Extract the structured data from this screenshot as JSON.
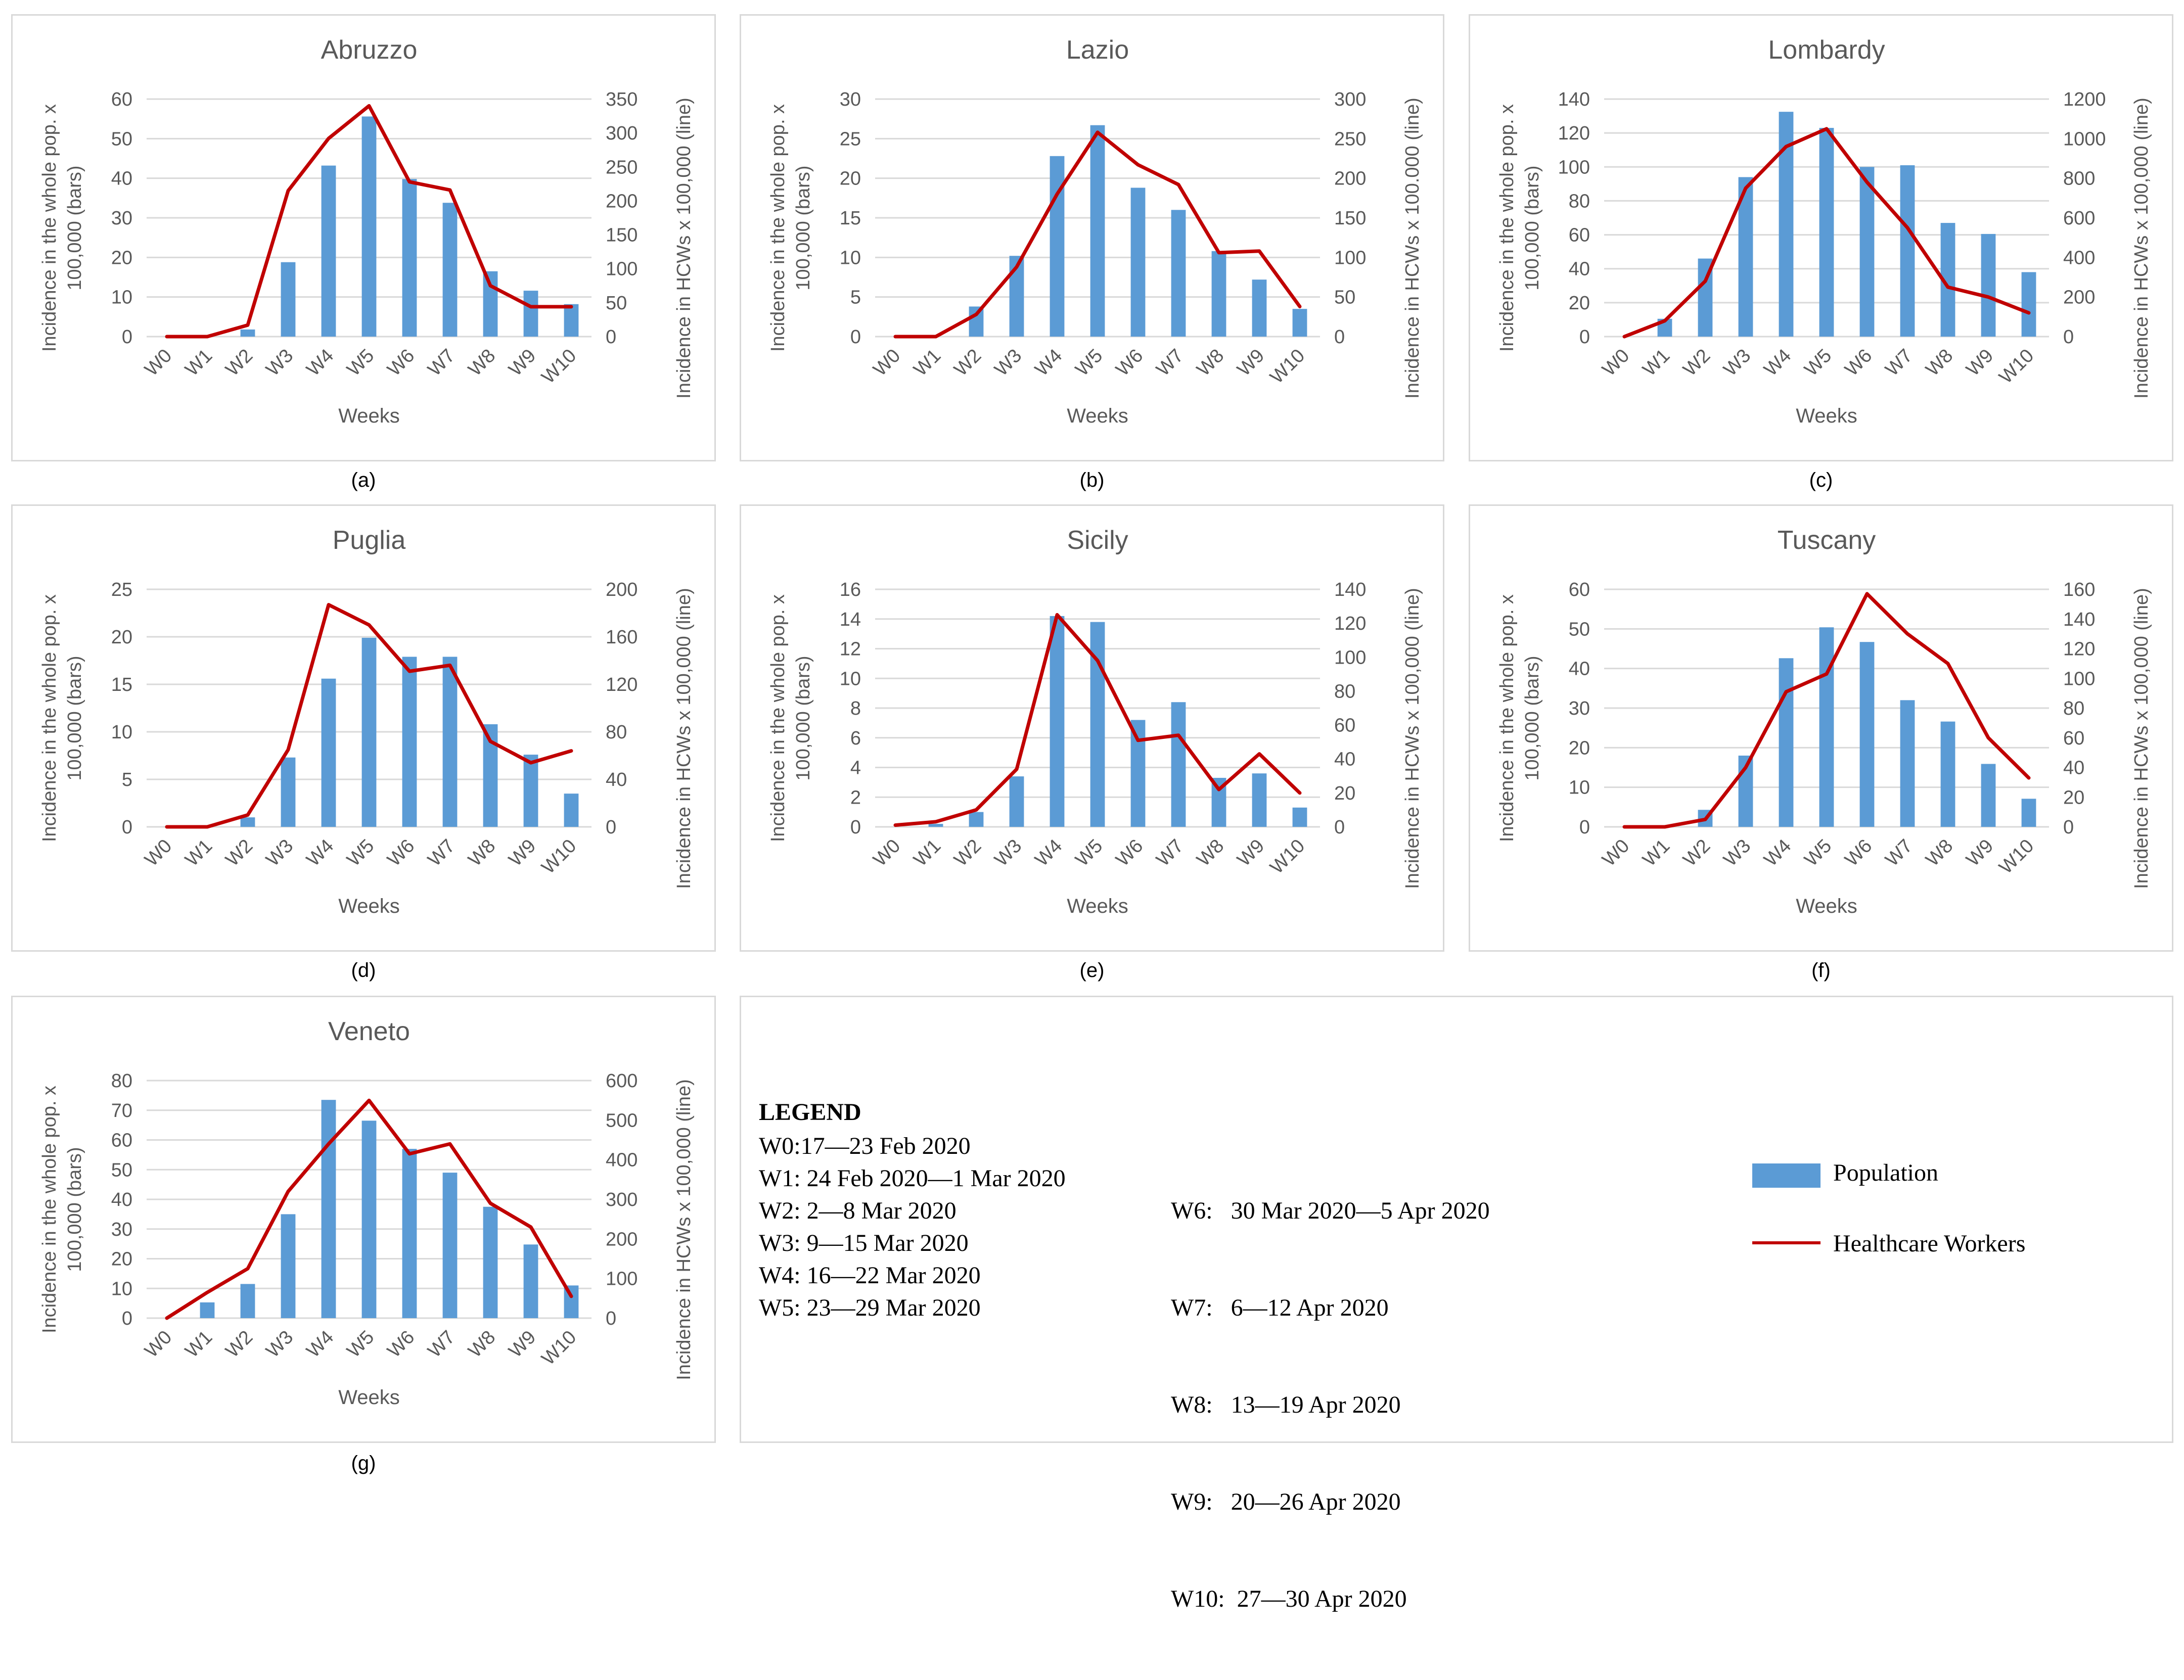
{
  "colors": {
    "bar": "#5b9bd5",
    "line": "#c00000",
    "grid": "#d9d9d9",
    "axis_text": "#595959"
  },
  "chart_data": [
    {
      "type": "bar+line",
      "caption": "(a)",
      "title": "Abruzzo",
      "categories": [
        "W0",
        "W1",
        "W2",
        "W3",
        "W4",
        "W5",
        "W6",
        "W7",
        "W8",
        "W9",
        "W10"
      ],
      "xlabel": "Weeks",
      "ylabel_left": [
        "Incidence in the whole pop. x",
        "100,000 (bars)"
      ],
      "ylabel_right": "Incidence in HCWs x 100,000 (line)",
      "left_ticks": [
        "0",
        "10",
        "20",
        "30",
        "40",
        "50",
        "60"
      ],
      "left_max": 60,
      "right_ticks": [
        "0",
        "50",
        "100",
        "150",
        "200",
        "250",
        "300",
        "350"
      ],
      "right_max": 350,
      "bars": [
        0,
        0,
        1.8,
        18.8,
        43.2,
        55.6,
        39.8,
        33.8,
        16.5,
        11.6,
        8.2
      ],
      "line": [
        0,
        0,
        17,
        215,
        292,
        340,
        228,
        216,
        75,
        44,
        44
      ]
    },
    {
      "type": "bar+line",
      "caption": "(b)",
      "title": "Lazio",
      "categories": [
        "W0",
        "W1",
        "W2",
        "W3",
        "W4",
        "W5",
        "W6",
        "W7",
        "W8",
        "W9",
        "W10"
      ],
      "xlabel": "Weeks",
      "ylabel_left": [
        "Incidence in the whole pop. x",
        "100,000 (bars)"
      ],
      "ylabel_right": "Incidence in HCWs x 100.000 (line)",
      "left_ticks": [
        "0",
        "5",
        "10",
        "15",
        "20",
        "25",
        "30"
      ],
      "left_max": 30,
      "right_ticks": [
        "0",
        "50",
        "100",
        "150",
        "200",
        "250",
        "300"
      ],
      "right_max": 300,
      "bars": [
        0,
        0,
        3.8,
        10.2,
        22.8,
        26.7,
        18.8,
        16.0,
        10.8,
        7.2,
        3.5
      ],
      "line": [
        0,
        0,
        28,
        88,
        180,
        258,
        217,
        192,
        106,
        108,
        38
      ]
    },
    {
      "type": "bar+line",
      "caption": "(c)",
      "title": "Lombardy",
      "categories": [
        "W0",
        "W1",
        "W2",
        "W3",
        "W4",
        "W5",
        "W6",
        "W7",
        "W8",
        "W9",
        "W10"
      ],
      "xlabel": "Weeks",
      "ylabel_left": [
        "Incidence in the whole pop. x",
        "100,000 (bars)"
      ],
      "ylabel_right": "Incidence in HCWs x 100,000 (line)",
      "left_ticks": [
        "0",
        "20",
        "40",
        "60",
        "80",
        "100",
        "120",
        "140"
      ],
      "left_max": 140,
      "right_ticks": [
        "0",
        "200",
        "400",
        "600",
        "800",
        "1000",
        "1200"
      ],
      "right_max": 1200,
      "bars": [
        0,
        10.5,
        46,
        94,
        132.5,
        123,
        100,
        101,
        67,
        60.5,
        38
      ],
      "line": [
        0,
        80,
        280,
        750,
        960,
        1050,
        780,
        550,
        250,
        200,
        120
      ]
    },
    {
      "type": "bar+line",
      "caption": "(d)",
      "title": "Puglia",
      "categories": [
        "W0",
        "W1",
        "W2",
        "W3",
        "W4",
        "W5",
        "W6",
        "W7",
        "W8",
        "W9",
        "W10"
      ],
      "xlabel": "Weeks",
      "ylabel_left": [
        "Incidence in the whole pop. x",
        "100,000 (bars)"
      ],
      "ylabel_right": "Incidence in HCWs x 100,000 (line)",
      "left_ticks": [
        "0",
        "5",
        "10",
        "15",
        "20",
        "25"
      ],
      "left_max": 25,
      "right_ticks": [
        "0",
        "40",
        "80",
        "120",
        "160",
        "200"
      ],
      "right_max": 200,
      "bars": [
        0,
        0,
        1.0,
        7.3,
        15.6,
        19.9,
        17.9,
        17.9,
        10.8,
        7.6,
        3.5
      ],
      "line": [
        0,
        0,
        10,
        65,
        187,
        170,
        131,
        136,
        72,
        54,
        64
      ]
    },
    {
      "type": "bar+line",
      "caption": "(e)",
      "title": "Sicily",
      "categories": [
        "W0",
        "W1",
        "W2",
        "W3",
        "W4",
        "W5",
        "W6",
        "W7",
        "W8",
        "W9",
        "W10"
      ],
      "xlabel": "Weeks",
      "ylabel_left": [
        "Incidence in the whole pop. x",
        "100,000 (bars)"
      ],
      "ylabel_right": "Incidence in HCWs x 100,000 (line)",
      "left_ticks": [
        "0",
        "2",
        "4",
        "6",
        "8",
        "10",
        "12",
        "14",
        "16"
      ],
      "left_max": 16,
      "right_ticks": [
        "0",
        "20",
        "40",
        "60",
        "80",
        "100",
        "120",
        "140"
      ],
      "right_max": 140,
      "bars": [
        0,
        0.2,
        1.0,
        3.4,
        14.2,
        13.8,
        7.2,
        8.4,
        3.3,
        3.6,
        1.3
      ],
      "line": [
        1,
        3,
        10,
        34,
        125,
        98,
        51,
        54,
        22,
        43,
        20
      ]
    },
    {
      "type": "bar+line",
      "caption": "(f)",
      "title": "Tuscany",
      "categories": [
        "W0",
        "W1",
        "W2",
        "W3",
        "W4",
        "W5",
        "W6",
        "W7",
        "W8",
        "W9",
        "W10"
      ],
      "xlabel": "Weeks",
      "ylabel_left": [
        "Incidence in the whole pop. x",
        "100,000 (bars)"
      ],
      "ylabel_right": "Incidence in HCWs x 100,000 (line)",
      "left_ticks": [
        "0",
        "10",
        "20",
        "30",
        "40",
        "50",
        "60"
      ],
      "left_max": 60,
      "right_ticks": [
        "0",
        "20",
        "40",
        "60",
        "80",
        "100",
        "120",
        "140",
        "160"
      ],
      "right_max": 160,
      "bars": [
        0,
        0,
        4.3,
        18.0,
        42.6,
        50.4,
        46.7,
        32.0,
        26.6,
        15.9,
        7.1
      ],
      "line": [
        0,
        0,
        5,
        40,
        91,
        103,
        157,
        130,
        110,
        60,
        33
      ]
    },
    {
      "type": "bar+line",
      "caption": "(g)",
      "title": "Veneto",
      "categories": [
        "W0",
        "W1",
        "W2",
        "W3",
        "W4",
        "W5",
        "W6",
        "W7",
        "W8",
        "W9",
        "W10"
      ],
      "xlabel": "Weeks",
      "ylabel_left": [
        "Incidence in the whole pop. x",
        "100,000 (bars)"
      ],
      "ylabel_right": "Incidence in HCWs x 100,000 (line)",
      "left_ticks": [
        "0",
        "10",
        "20",
        "30",
        "40",
        "50",
        "60",
        "70",
        "80"
      ],
      "left_max": 80,
      "right_ticks": [
        "0",
        "100",
        "200",
        "300",
        "400",
        "500",
        "600"
      ],
      "right_max": 600,
      "bars": [
        0,
        5.3,
        11.5,
        35.0,
        73.5,
        66.5,
        57.0,
        49.0,
        37.5,
        24.8,
        11.0
      ],
      "line": [
        0,
        65,
        125,
        320,
        440,
        550,
        415,
        440,
        290,
        230,
        55
      ]
    }
  ],
  "legend": {
    "title": "LEGEND",
    "weeks_col1": [
      "W0:17—23 Feb 2020",
      "W1: 24 Feb 2020—1 Mar 2020",
      "W2: 2—8 Mar 2020",
      "W3: 9—15 Mar 2020",
      "W4: 16—22 Mar 2020",
      "W5: 23—29 Mar 2020"
    ],
    "weeks_col2": [
      "W6:   30 Mar 2020—5 Apr 2020",
      "W7:   6—12 Apr 2020",
      "W8:   13—19 Apr 2020",
      "W9:   20—26 Apr 2020",
      "W10:  27—30 Apr 2020"
    ],
    "population_label": "Population",
    "hcw_label": "Healthcare Workers"
  }
}
